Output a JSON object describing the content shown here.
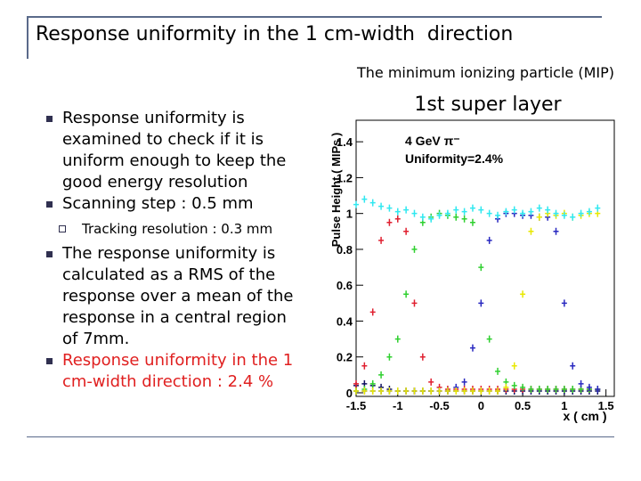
{
  "header": {
    "title": "Response uniformity in the 1 cm-width  direction",
    "subtitle": "The minimum ionizing particle (MIP)"
  },
  "bullets": [
    {
      "text": "Response uniformity is examined to check if it is uniform enough to keep the good energy resolution"
    },
    {
      "text": "Scanning step : 0.5 mm",
      "children": [
        "Tracking resolution : 0.3 mm"
      ]
    },
    {
      "text": "The response uniformity is calculated as a RMS of the response over a mean of the response in a central region of 7mm."
    },
    {
      "text": "Response uniformity in the 1 cm-width direction : 2.4 %"
    }
  ],
  "chart_data": {
    "type": "scatter",
    "title": "1st super layer",
    "annotations": [
      "4 GeV π⁻",
      "Uniformity=2.4%"
    ],
    "xlabel": "x ( cm )",
    "ylabel": "Pulse Height ( MIPs )",
    "x": [
      -1.5,
      -1.4,
      -1.3,
      -1.2,
      -1.1,
      -1.0,
      -0.9,
      -0.8,
      -0.7,
      -0.6,
      -0.5,
      -0.4,
      -0.3,
      -0.2,
      -0.1,
      0,
      0.1,
      0.2,
      0.3,
      0.4,
      0.5,
      0.6,
      0.7,
      0.8,
      0.9,
      1.0,
      1.1,
      1.2,
      1.3,
      1.4
    ],
    "xlim": [
      -1.5,
      1.6
    ],
    "xticks": [
      -1.5,
      -1,
      -0.5,
      0,
      0.5,
      1,
      1.5
    ],
    "ylim": [
      -0.02,
      1.52
    ],
    "yticks": [
      0,
      0.2,
      0.4,
      0.6,
      0.8,
      1,
      1.2,
      1.4
    ],
    "series": [
      {
        "color": "#101060",
        "values": [
          0.04,
          0.05,
          0.04,
          0.03,
          0.02,
          0.01,
          0.01,
          0.01,
          0.01,
          0.01,
          0.01,
          0.01,
          0.01,
          0.01,
          0.01,
          0.01,
          0.01,
          0.01,
          0.01,
          0.01,
          0.01,
          0.01,
          0.01,
          0.01,
          0.01,
          0.01,
          0.01,
          0.01,
          0.01,
          0.01
        ]
      },
      {
        "color": "#e02030",
        "values": [
          0.05,
          0.15,
          0.45,
          0.85,
          0.95,
          0.97,
          0.9,
          0.5,
          0.2,
          0.06,
          0.03,
          0.02,
          0.02,
          0.02,
          0.02,
          0.02,
          0.02,
          0.02,
          0.02,
          0.02,
          0.02,
          0.02,
          0.02,
          0.02,
          0.02,
          0.02,
          0.02,
          0.02,
          0.02,
          0.02
        ]
      },
      {
        "color": "#30d030",
        "values": [
          0.01,
          0.02,
          0.05,
          0.1,
          0.2,
          0.3,
          0.55,
          0.8,
          0.95,
          0.98,
          1.0,
          0.99,
          0.98,
          0.97,
          0.95,
          0.7,
          0.3,
          0.12,
          0.06,
          0.04,
          0.03,
          0.02,
          0.02,
          0.02,
          0.02,
          0.02,
          0.02,
          0.02,
          0.02,
          0.02
        ]
      },
      {
        "color": "#2828c0",
        "values": [
          0.01,
          0.01,
          0.01,
          0.01,
          0.01,
          0.01,
          0.01,
          0.01,
          0.01,
          0.01,
          0.01,
          0.01,
          0.03,
          0.06,
          0.25,
          0.5,
          0.85,
          0.97,
          1.0,
          1.0,
          0.99,
          0.99,
          0.98,
          0.98,
          0.9,
          0.5,
          0.15,
          0.05,
          0.03,
          0.02
        ]
      },
      {
        "color": "#e8e800",
        "values": [
          0.01,
          0.01,
          0.01,
          0.01,
          0.01,
          0.01,
          0.01,
          0.01,
          0.01,
          0.01,
          0.01,
          0.01,
          0.01,
          0.01,
          0.01,
          0.01,
          0.01,
          0.01,
          0.03,
          0.15,
          0.55,
          0.9,
          0.98,
          1.0,
          0.99,
          1.0,
          0.98,
          0.99,
          1.0,
          1.0
        ]
      },
      {
        "color": "#30e8f0",
        "values": [
          1.05,
          1.08,
          1.06,
          1.04,
          1.03,
          1.01,
          1.02,
          1.0,
          0.98,
          0.97,
          0.99,
          1.0,
          1.02,
          1.01,
          1.03,
          1.02,
          1.0,
          0.99,
          1.01,
          1.02,
          1.0,
          1.01,
          1.03,
          1.02,
          1.0,
          0.99,
          0.98,
          1.0,
          1.01,
          1.03
        ]
      }
    ]
  }
}
